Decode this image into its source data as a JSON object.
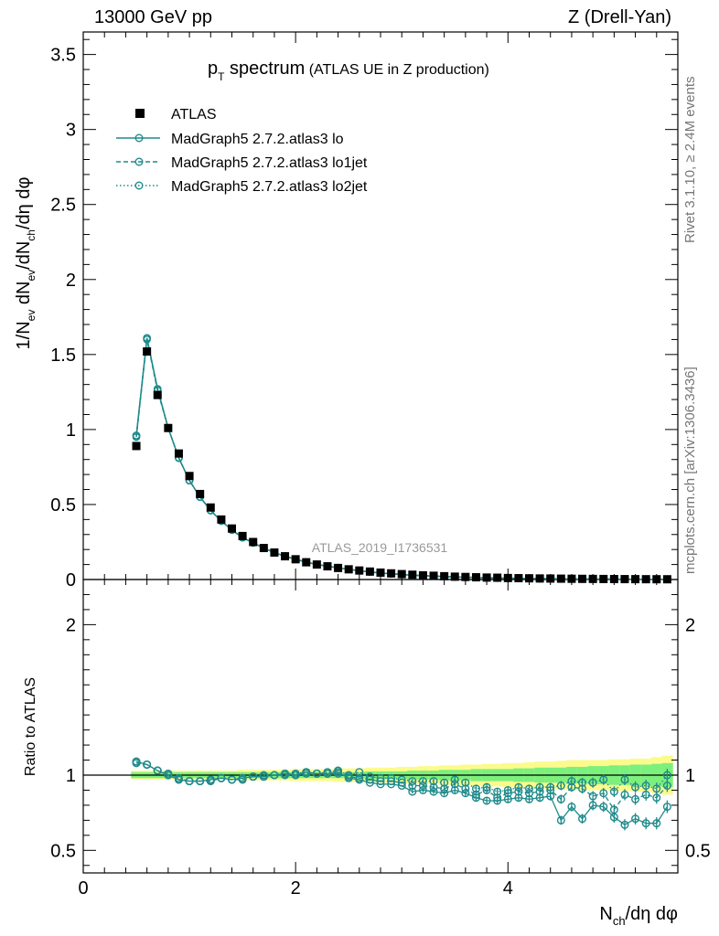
{
  "header": {
    "energy_label": "13000 GeV pp",
    "process_label": "Z (Drell-Yan)"
  },
  "side_labels": {
    "rivet": "Rivet 3.1.10, ≥ 2.4M events",
    "mcplots": "mcplots.cern.ch [arXiv:1306.3436]"
  },
  "chart_data": [
    {
      "type": "scatter",
      "title": "p_T spectrum",
      "title_main": "p",
      "title_sub": "T",
      "title_rest": " spectrum",
      "title_note": "(ATLAS UE in Z production)",
      "analysis_label": "ATLAS_2019_I1736531",
      "ylabel": "1/N_ev dN_ev/dN_ch/dη dφ",
      "xlim": [
        0,
        5.6
      ],
      "ylim": [
        0,
        3.65
      ],
      "x_ticks": [
        0,
        2,
        4
      ],
      "y_ticks": [
        0,
        0.5,
        1,
        1.5,
        2,
        2.5,
        3,
        3.5
      ],
      "y_tick_labels": [
        "0",
        "0.5",
        "1",
        "1.5",
        "2",
        "2.5",
        "3",
        "3.5"
      ],
      "legend": [
        "ATLAS",
        "MadGraph5 2.7.2.atlas3 lo",
        "MadGraph5 2.7.2.atlas3 lo1jet",
        "MadGraph5 2.7.2.atlas3 lo2jet"
      ],
      "legend_position": "top-left",
      "x": [
        0.5,
        0.6,
        0.7,
        0.8,
        0.9,
        1.0,
        1.1,
        1.2,
        1.3,
        1.4,
        1.5,
        1.6,
        1.7,
        1.8,
        1.9,
        2.0,
        2.1,
        2.2,
        2.3,
        2.4,
        2.5,
        2.6,
        2.7,
        2.8,
        2.9,
        3.0,
        3.1,
        3.2,
        3.3,
        3.4,
        3.5,
        3.6,
        3.7,
        3.8,
        3.9,
        4.0,
        4.1,
        4.2,
        4.3,
        4.4,
        4.5,
        4.6,
        4.7,
        4.8,
        4.9,
        5.0,
        5.1,
        5.2,
        5.3,
        5.4,
        5.5
      ],
      "series": [
        {
          "name": "ATLAS",
          "values": [
            0.89,
            1.52,
            1.23,
            1.01,
            0.84,
            0.69,
            0.57,
            0.48,
            0.4,
            0.34,
            0.29,
            0.25,
            0.21,
            0.18,
            0.155,
            0.135,
            0.115,
            0.1,
            0.088,
            0.077,
            0.068,
            0.06,
            0.053,
            0.046,
            0.041,
            0.036,
            0.032,
            0.028,
            0.025,
            0.022,
            0.019,
            0.017,
            0.015,
            0.013,
            0.012,
            0.01,
            0.009,
            0.008,
            0.007,
            0.0065,
            0.0057,
            0.005,
            0.0045,
            0.004,
            0.0035,
            0.003,
            0.0027,
            0.0024,
            0.0021,
            0.0019,
            0.0017
          ]
        },
        {
          "name": "MadGraph5 2.7.2.atlas3 lo",
          "values": [
            0.96,
            1.61,
            1.27,
            1.01,
            0.81,
            0.66,
            0.55,
            0.46,
            0.39,
            0.33,
            0.28,
            0.245,
            0.21,
            0.18,
            0.155,
            0.135,
            0.116,
            0.1,
            0.089,
            0.078,
            0.068,
            0.058,
            0.05,
            0.043,
            0.038,
            0.033,
            0.028,
            0.025,
            0.022,
            0.019,
            0.017,
            0.015,
            0.013,
            0.011,
            0.01,
            0.0088,
            0.0077,
            0.0068,
            0.006,
            0.0053,
            0.004,
            0.004,
            0.0033,
            0.0033,
            0.0028,
            0.0022,
            0.002,
            0.0017,
            0.0015,
            0.0013,
            0.0014
          ]
        },
        {
          "name": "MadGraph5 2.7.2.atlas3 lo1jet",
          "values": [
            0.95,
            1.6,
            1.26,
            1.01,
            0.81,
            0.66,
            0.55,
            0.46,
            0.39,
            0.33,
            0.28,
            0.245,
            0.21,
            0.18,
            0.155,
            0.135,
            0.116,
            0.1,
            0.089,
            0.078,
            0.068,
            0.059,
            0.051,
            0.044,
            0.039,
            0.034,
            0.03,
            0.026,
            0.023,
            0.02,
            0.018,
            0.015,
            0.013,
            0.012,
            0.01,
            0.009,
            0.008,
            0.007,
            0.0062,
            0.0058,
            0.0048,
            0.0046,
            0.0041,
            0.0036,
            0.0033,
            0.0025,
            0.0024,
            0.002,
            0.0018,
            0.0016,
            0.0016
          ]
        },
        {
          "name": "MadGraph5 2.7.2.atlas3 lo2jet",
          "values": [
            0.96,
            1.61,
            1.27,
            1.01,
            0.81,
            0.66,
            0.55,
            0.46,
            0.39,
            0.33,
            0.28,
            0.245,
            0.21,
            0.18,
            0.155,
            0.136,
            0.117,
            0.1,
            0.089,
            0.078,
            0.068,
            0.059,
            0.052,
            0.045,
            0.04,
            0.035,
            0.031,
            0.027,
            0.024,
            0.021,
            0.018,
            0.016,
            0.014,
            0.012,
            0.011,
            0.0095,
            0.0083,
            0.0073,
            0.0064,
            0.006,
            0.005,
            0.0048,
            0.0043,
            0.0038,
            0.0035,
            0.0028,
            0.0026,
            0.0022,
            0.0019,
            0.0017,
            0.0017
          ]
        }
      ]
    },
    {
      "type": "scatter",
      "ylabel": "Ratio to ATLAS",
      "xlabel": "N_ch/dη dφ",
      "xlabel_main": "N",
      "xlabel_sub": "ch",
      "xlabel_rest": "/dη dφ",
      "xlim": [
        0,
        5.6
      ],
      "ylim": [
        0.35,
        2.3
      ],
      "x_ticks": [
        0,
        2,
        4
      ],
      "x_tick_labels": [
        "0",
        "2",
        "4"
      ],
      "y_ticks": [
        0.5,
        1,
        2
      ],
      "y_tick_labels": [
        "0.5",
        "1",
        "2"
      ],
      "reference_line": 1,
      "x": [
        0.5,
        0.6,
        0.7,
        0.8,
        0.9,
        1.0,
        1.1,
        1.2,
        1.3,
        1.4,
        1.5,
        1.6,
        1.7,
        1.8,
        1.9,
        2.0,
        2.1,
        2.2,
        2.3,
        2.4,
        2.5,
        2.6,
        2.7,
        2.8,
        2.9,
        3.0,
        3.1,
        3.2,
        3.3,
        3.4,
        3.5,
        3.6,
        3.7,
        3.8,
        3.9,
        4.0,
        4.1,
        4.2,
        4.3,
        4.4,
        4.5,
        4.6,
        4.7,
        4.8,
        4.9,
        5.0,
        5.1,
        5.2,
        5.3,
        5.4,
        5.5
      ],
      "band_stat": [
        0.02,
        0.02,
        0.02,
        0.02,
        0.02,
        0.02,
        0.02,
        0.02,
        0.02,
        0.02,
        0.02,
        0.02,
        0.02,
        0.02,
        0.02,
        0.02,
        0.02,
        0.02,
        0.02,
        0.02,
        0.02,
        0.02,
        0.025,
        0.025,
        0.025,
        0.025,
        0.03,
        0.03,
        0.03,
        0.035,
        0.035,
        0.035,
        0.04,
        0.04,
        0.04,
        0.04,
        0.045,
        0.045,
        0.05,
        0.05,
        0.05,
        0.055,
        0.055,
        0.06,
        0.06,
        0.065,
        0.065,
        0.07,
        0.07,
        0.075,
        0.08
      ],
      "band_total": [
        0.03,
        0.03,
        0.03,
        0.03,
        0.03,
        0.03,
        0.03,
        0.03,
        0.03,
        0.03,
        0.035,
        0.035,
        0.035,
        0.035,
        0.035,
        0.04,
        0.04,
        0.04,
        0.04,
        0.045,
        0.045,
        0.045,
        0.05,
        0.05,
        0.05,
        0.055,
        0.055,
        0.06,
        0.06,
        0.065,
        0.065,
        0.07,
        0.07,
        0.075,
        0.075,
        0.08,
        0.08,
        0.085,
        0.09,
        0.09,
        0.095,
        0.1,
        0.1,
        0.1,
        0.1,
        0.105,
        0.105,
        0.11,
        0.11,
        0.12,
        0.13
      ],
      "series": [
        {
          "name": "MadGraph5 2.7.2.atlas3 lo",
          "values": [
            1.09,
            1.07,
            1.03,
            1.0,
            0.97,
            0.96,
            0.96,
            0.97,
            0.98,
            0.97,
            0.98,
            0.99,
            0.99,
            1.0,
            1.01,
            1.0,
            1.02,
            1.01,
            1.01,
            1.02,
            0.98,
            0.97,
            0.95,
            0.94,
            0.94,
            0.93,
            0.89,
            0.9,
            0.89,
            0.88,
            0.9,
            0.88,
            0.85,
            0.83,
            0.83,
            0.84,
            0.85,
            0.84,
            0.85,
            0.86,
            0.7,
            0.79,
            0.71,
            0.8,
            0.79,
            0.72,
            0.67,
            0.71,
            0.68,
            0.68,
            0.79
          ]
        },
        {
          "name": "MadGraph5 2.7.2.atlas3 lo1jet",
          "values": [
            1.08,
            1.07,
            1.03,
            1.0,
            0.97,
            0.96,
            0.96,
            0.96,
            0.98,
            0.97,
            0.97,
            0.99,
            0.99,
            1.0,
            1.0,
            1.0,
            1.01,
            1.01,
            1.01,
            1.01,
            0.99,
            0.98,
            0.97,
            0.96,
            0.96,
            0.95,
            0.93,
            0.93,
            0.92,
            0.91,
            0.94,
            0.91,
            0.87,
            0.9,
            0.85,
            0.88,
            0.89,
            0.88,
            0.89,
            0.9,
            0.84,
            0.92,
            0.91,
            0.86,
            0.88,
            0.77,
            0.87,
            0.84,
            0.87,
            0.85,
            0.93
          ]
        },
        {
          "name": "MadGraph5 2.7.2.atlas3 lo2jet",
          "values": [
            1.09,
            1.07,
            1.03,
            1.01,
            0.98,
            0.96,
            0.96,
            0.97,
            0.98,
            0.97,
            0.98,
            0.99,
            1.0,
            1.0,
            1.01,
            1.01,
            1.02,
            1.01,
            1.02,
            1.03,
            1.0,
            1.02,
            0.99,
            0.98,
            0.98,
            0.97,
            0.96,
            0.96,
            0.96,
            0.95,
            0.97,
            0.95,
            0.91,
            0.92,
            0.89,
            0.9,
            0.92,
            0.91,
            0.92,
            0.92,
            0.93,
            0.96,
            0.95,
            0.95,
            0.97,
            0.89,
            0.97,
            0.92,
            0.93,
            0.91,
            1.0
          ]
        }
      ]
    }
  ],
  "colors": {
    "mc": "#1f8a8a",
    "data": "#000000",
    "band_stat": "#7cf07c",
    "band_total": "#fbfb8c",
    "side_text": "#777777",
    "analysis_text": "#999999"
  }
}
